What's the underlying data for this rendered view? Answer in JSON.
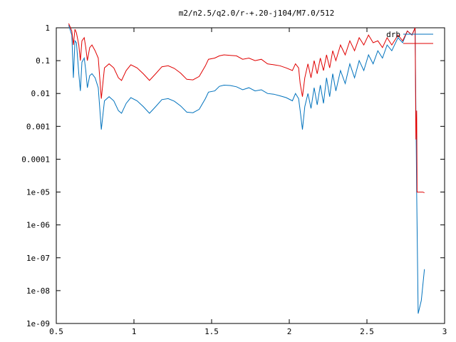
{
  "chart_data": {
    "type": "line",
    "title": "m2/n2.5/q2.0/r-+.20-j104/M7.0/512",
    "xlabel": "",
    "ylabel": "",
    "xlim": [
      0.5,
      3
    ],
    "ylim": [
      1e-09,
      1
    ],
    "yscale": "log",
    "grid": false,
    "legend_position": "top-right",
    "x_ticks": [
      {
        "value": 0.5,
        "label": "0.5"
      },
      {
        "value": 1,
        "label": "1"
      },
      {
        "value": 1.5,
        "label": "1.5"
      },
      {
        "value": 2,
        "label": "2"
      },
      {
        "value": 2.5,
        "label": "2.5"
      },
      {
        "value": 3,
        "label": "3"
      }
    ],
    "y_ticks": [
      {
        "value": 1,
        "label": "1"
      },
      {
        "value": 0.1,
        "label": "0.1"
      },
      {
        "value": 0.01,
        "label": "0.01"
      },
      {
        "value": 0.001,
        "label": "0.001"
      },
      {
        "value": 0.0001,
        "label": "0.0001"
      },
      {
        "value": 1e-05,
        "label": "1e-05"
      },
      {
        "value": 1e-06,
        "label": "1e-06"
      },
      {
        "value": 1e-07,
        "label": "1e-07"
      },
      {
        "value": 1e-08,
        "label": "1e-08"
      },
      {
        "value": 1e-09,
        "label": "1e-09"
      }
    ],
    "series": [
      {
        "name": "drb",
        "color": "#0072bd",
        "points": [
          [
            0.58,
            1.2
          ],
          [
            0.6,
            0.6
          ],
          [
            0.61,
            0.03
          ],
          [
            0.62,
            0.4
          ],
          [
            0.63,
            0.35
          ],
          [
            0.645,
            0.04
          ],
          [
            0.655,
            0.012
          ],
          [
            0.665,
            0.09
          ],
          [
            0.68,
            0.12
          ],
          [
            0.69,
            0.05
          ],
          [
            0.7,
            0.015
          ],
          [
            0.715,
            0.035
          ],
          [
            0.73,
            0.04
          ],
          [
            0.75,
            0.03
          ],
          [
            0.77,
            0.015
          ],
          [
            0.79,
            0.0008
          ],
          [
            0.81,
            0.006
          ],
          [
            0.84,
            0.008
          ],
          [
            0.87,
            0.006
          ],
          [
            0.9,
            0.003
          ],
          [
            0.92,
            0.0025
          ],
          [
            0.95,
            0.005
          ],
          [
            0.98,
            0.0075
          ],
          [
            1.02,
            0.006
          ],
          [
            1.06,
            0.004
          ],
          [
            1.1,
            0.0025
          ],
          [
            1.14,
            0.004
          ],
          [
            1.18,
            0.0065
          ],
          [
            1.22,
            0.007
          ],
          [
            1.26,
            0.0058
          ],
          [
            1.3,
            0.0042
          ],
          [
            1.34,
            0.0027
          ],
          [
            1.38,
            0.0026
          ],
          [
            1.42,
            0.0033
          ],
          [
            1.46,
            0.007
          ],
          [
            1.48,
            0.011
          ],
          [
            1.52,
            0.012
          ],
          [
            1.55,
            0.0165
          ],
          [
            1.58,
            0.018
          ],
          [
            1.62,
            0.0175
          ],
          [
            1.66,
            0.016
          ],
          [
            1.7,
            0.013
          ],
          [
            1.74,
            0.015
          ],
          [
            1.78,
            0.012
          ],
          [
            1.82,
            0.013
          ],
          [
            1.86,
            0.01
          ],
          [
            1.9,
            0.0095
          ],
          [
            1.94,
            0.0085
          ],
          [
            1.98,
            0.0075
          ],
          [
            2.02,
            0.006
          ],
          [
            2.04,
            0.01
          ],
          [
            2.06,
            0.007
          ],
          [
            2.07,
            0.003
          ],
          [
            2.085,
            0.0008
          ],
          [
            2.1,
            0.004
          ],
          [
            2.12,
            0.01
          ],
          [
            2.14,
            0.0035
          ],
          [
            2.16,
            0.015
          ],
          [
            2.18,
            0.0045
          ],
          [
            2.2,
            0.018
          ],
          [
            2.22,
            0.005
          ],
          [
            2.24,
            0.03
          ],
          [
            2.26,
            0.008
          ],
          [
            2.28,
            0.04
          ],
          [
            2.3,
            0.012
          ],
          [
            2.33,
            0.05
          ],
          [
            2.36,
            0.02
          ],
          [
            2.39,
            0.08
          ],
          [
            2.42,
            0.03
          ],
          [
            2.45,
            0.1
          ],
          [
            2.48,
            0.05
          ],
          [
            2.51,
            0.15
          ],
          [
            2.54,
            0.08
          ],
          [
            2.57,
            0.2
          ],
          [
            2.6,
            0.12
          ],
          [
            2.63,
            0.3
          ],
          [
            2.66,
            0.2
          ],
          [
            2.7,
            0.5
          ],
          [
            2.73,
            0.35
          ],
          [
            2.76,
            0.8
          ],
          [
            2.79,
            0.6
          ],
          [
            2.81,
            1.0
          ],
          [
            2.82,
            1e-05
          ],
          [
            2.83,
            2e-09
          ],
          [
            2.85,
            5e-09
          ],
          [
            2.87,
            4.5e-08
          ]
        ]
      },
      {
        "name": "",
        "color": "#e00000",
        "points": [
          [
            0.58,
            1.5
          ],
          [
            0.6,
            0.8
          ],
          [
            0.61,
            0.3
          ],
          [
            0.62,
            0.9
          ],
          [
            0.63,
            0.7
          ],
          [
            0.645,
            0.3
          ],
          [
            0.655,
            0.1
          ],
          [
            0.665,
            0.4
          ],
          [
            0.68,
            0.5
          ],
          [
            0.69,
            0.25
          ],
          [
            0.7,
            0.1
          ],
          [
            0.715,
            0.25
          ],
          [
            0.73,
            0.3
          ],
          [
            0.75,
            0.2
          ],
          [
            0.77,
            0.12
          ],
          [
            0.79,
            0.007
          ],
          [
            0.81,
            0.06
          ],
          [
            0.84,
            0.08
          ],
          [
            0.87,
            0.06
          ],
          [
            0.9,
            0.03
          ],
          [
            0.92,
            0.025
          ],
          [
            0.95,
            0.05
          ],
          [
            0.98,
            0.075
          ],
          [
            1.02,
            0.06
          ],
          [
            1.06,
            0.04
          ],
          [
            1.1,
            0.025
          ],
          [
            1.14,
            0.04
          ],
          [
            1.18,
            0.065
          ],
          [
            1.22,
            0.07
          ],
          [
            1.26,
            0.058
          ],
          [
            1.3,
            0.042
          ],
          [
            1.34,
            0.027
          ],
          [
            1.38,
            0.026
          ],
          [
            1.42,
            0.033
          ],
          [
            1.46,
            0.07
          ],
          [
            1.48,
            0.11
          ],
          [
            1.52,
            0.12
          ],
          [
            1.55,
            0.14
          ],
          [
            1.58,
            0.15
          ],
          [
            1.62,
            0.145
          ],
          [
            1.66,
            0.14
          ],
          [
            1.7,
            0.11
          ],
          [
            1.74,
            0.12
          ],
          [
            1.78,
            0.1
          ],
          [
            1.82,
            0.11
          ],
          [
            1.86,
            0.08
          ],
          [
            1.9,
            0.075
          ],
          [
            1.94,
            0.07
          ],
          [
            1.98,
            0.06
          ],
          [
            2.02,
            0.05
          ],
          [
            2.04,
            0.08
          ],
          [
            2.06,
            0.06
          ],
          [
            2.07,
            0.02
          ],
          [
            2.085,
            0.008
          ],
          [
            2.1,
            0.03
          ],
          [
            2.12,
            0.08
          ],
          [
            2.14,
            0.03
          ],
          [
            2.16,
            0.1
          ],
          [
            2.18,
            0.04
          ],
          [
            2.2,
            0.12
          ],
          [
            2.22,
            0.05
          ],
          [
            2.24,
            0.15
          ],
          [
            2.26,
            0.06
          ],
          [
            2.28,
            0.2
          ],
          [
            2.3,
            0.1
          ],
          [
            2.33,
            0.3
          ],
          [
            2.36,
            0.15
          ],
          [
            2.39,
            0.4
          ],
          [
            2.42,
            0.2
          ],
          [
            2.45,
            0.5
          ],
          [
            2.48,
            0.3
          ],
          [
            2.51,
            0.6
          ],
          [
            2.54,
            0.35
          ],
          [
            2.57,
            0.4
          ],
          [
            2.6,
            0.25
          ],
          [
            2.63,
            0.5
          ],
          [
            2.66,
            0.3
          ],
          [
            2.7,
            0.6
          ],
          [
            2.73,
            0.4
          ],
          [
            2.76,
            0.8
          ],
          [
            2.79,
            0.6
          ],
          [
            2.81,
            1.0
          ],
          [
            2.815,
            0.0004
          ],
          [
            2.82,
            0.003
          ],
          [
            2.823,
            1e-05
          ],
          [
            2.86,
            1e-05
          ],
          [
            2.87,
            9.5e-06
          ]
        ]
      }
    ]
  }
}
